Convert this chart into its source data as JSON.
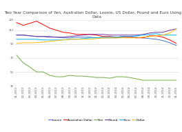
{
  "title": "Two Year Comparison of Yen, Australian Dollar, Loonie, US Dollar, Pound and Euro Using BIS\nData",
  "x_labels": [
    "01-2013",
    "02-2013",
    "03-2013",
    "04-2013",
    "05-2013",
    "06-2013",
    "07-2013",
    "08-2013",
    "09-2013",
    "10-2013",
    "11-2013",
    "12-2013",
    "01-2014",
    "02-2014",
    "03-2014",
    "04-2014",
    "05-2014",
    "06-2014",
    "07-2014",
    "08-2014",
    "09-2014",
    "10-2014",
    "11-2014",
    "12-2014",
    "01-2015"
  ],
  "series": {
    "Loonie": {
      "color": "#4472C4",
      "values": [
        103,
        103,
        102,
        101,
        101,
        101,
        100,
        99,
        99,
        100,
        100,
        100,
        99,
        99,
        99,
        99,
        100,
        100,
        100,
        99,
        98,
        97,
        95,
        92,
        88
      ]
    },
    "Australian Dollar": {
      "color": "#FF0000",
      "values": [
        121,
        117,
        120,
        123,
        118,
        113,
        110,
        107,
        106,
        104,
        104,
        104,
        103,
        101,
        101,
        100,
        101,
        100,
        99,
        99,
        102,
        102,
        100,
        96,
        91
      ]
    },
    "Yen": {
      "color": "#70AD47",
      "values": [
        74,
        63,
        57,
        50,
        50,
        45,
        43,
        43,
        45,
        44,
        44,
        43,
        42,
        42,
        41,
        43,
        43,
        42,
        40,
        38,
        38,
        38,
        38,
        38,
        38
      ]
    },
    "Pound": {
      "color": "#7030A0",
      "values": [
        103,
        103,
        102,
        101,
        101,
        100,
        100,
        100,
        101,
        102,
        103,
        104,
        104,
        104,
        103,
        103,
        103,
        103,
        103,
        104,
        106,
        107,
        107,
        110,
        112
      ]
    },
    "Euro": {
      "color": "#00B0F0",
      "values": [
        97,
        97,
        97,
        97,
        96,
        96,
        96,
        96,
        97,
        97,
        98,
        99,
        99,
        100,
        100,
        100,
        101,
        101,
        102,
        103,
        104,
        105,
        103,
        103,
        103
      ]
    },
    "Dollar": {
      "color": "#FFC000",
      "values": [
        91,
        92,
        92,
        92,
        93,
        94,
        95,
        96,
        97,
        97,
        97,
        97,
        98,
        99,
        99,
        99,
        99,
        99,
        99,
        100,
        101,
        102,
        103,
        106,
        112
      ]
    }
  },
  "ylim": [
    30,
    125
  ],
  "yticks": [
    30,
    50,
    70,
    90,
    110,
    125
  ],
  "ytick_labels": [
    "30",
    "50",
    "70",
    "90",
    "110",
    "125"
  ],
  "bg_color": "#FFFFFF",
  "grid_color": "#D9D9D9",
  "title_fontsize": 4.2,
  "legend_fontsize": 3.2,
  "tick_fontsize": 2.8,
  "linewidth": 0.7
}
